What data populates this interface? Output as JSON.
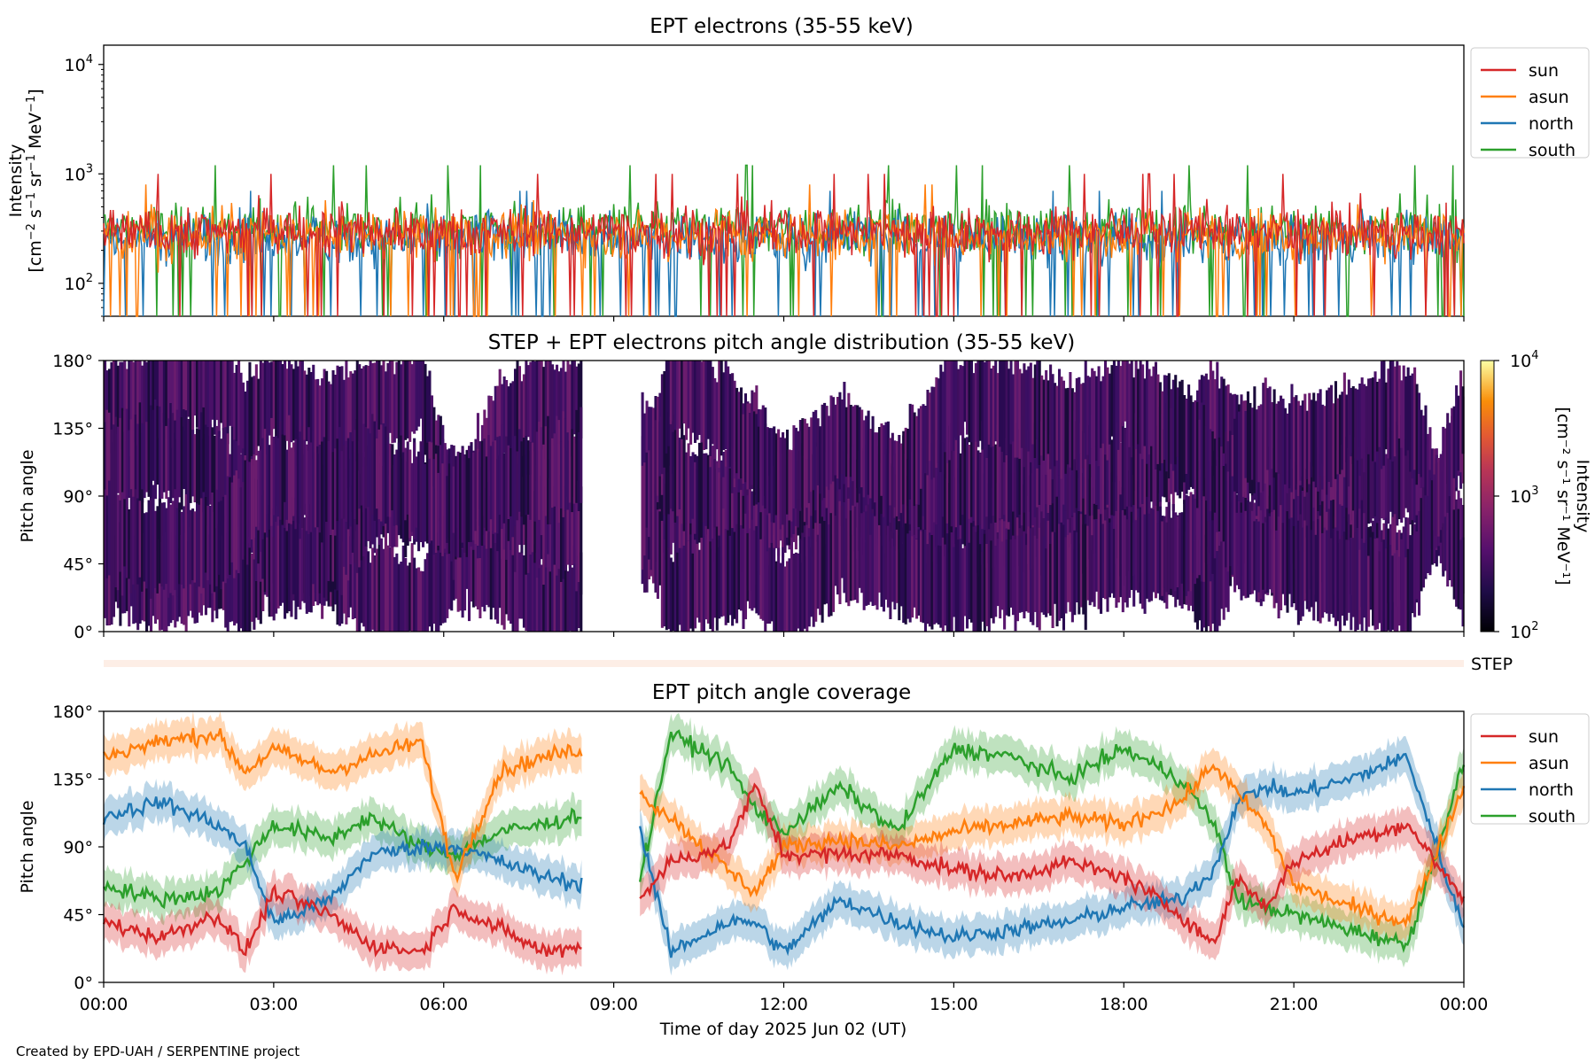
{
  "figure_credit": "Created by EPD-UAH / SERPENTINE project",
  "colors": {
    "sun": "#d62728",
    "asun": "#ff7f0e",
    "north": "#1f77b4",
    "south": "#2ca02c"
  },
  "chart_data": [
    {
      "type": "line",
      "title": "EPT electrons (35-55 keV)",
      "xlabel": "",
      "ylabel_line1": "Intensity",
      "ylabel_line2_parts": [
        "[cm",
        "−2",
        " s",
        "−1",
        " sr",
        "−1",
        " MeV",
        "−1",
        "]"
      ],
      "yscale": "log",
      "ylim": [
        50,
        15000
      ],
      "yticks": [
        {
          "value": 100,
          "base": "10",
          "exp": "2"
        },
        {
          "value": 1000,
          "base": "10",
          "exp": "3"
        },
        {
          "value": 10000,
          "base": "10",
          "exp": "4"
        }
      ],
      "xlim_hours": [
        0,
        24
      ],
      "x_ticks_hours": [
        0,
        3,
        6,
        9,
        12,
        15,
        18,
        21,
        24
      ],
      "legend_position": "outside-right-top",
      "series": [
        {
          "name": "sun",
          "typical_range": [
            60,
            1000
          ],
          "median": 300
        },
        {
          "name": "asun",
          "typical_range": [
            50,
            800
          ],
          "median": 280
        },
        {
          "name": "north",
          "typical_range": [
            50,
            700
          ],
          "median": 260
        },
        {
          "name": "south",
          "typical_range": [
            60,
            1200
          ],
          "median": 320
        }
      ]
    },
    {
      "type": "heatmap",
      "title": "STEP + EPT electrons pitch angle distribution (35-55 keV)",
      "ylabel": "Pitch angle",
      "ylim": [
        0,
        180
      ],
      "yticks": [
        "0°",
        "45°",
        "90°",
        "135°",
        "180°"
      ],
      "xlim_hours": [
        0,
        24
      ],
      "data_gap_hours": [
        8.45,
        9.5
      ],
      "colorbar": {
        "label_line1": "Intensity",
        "label_line2": "[cm⁻² s⁻¹ sr⁻¹ MeV⁻¹]",
        "scale": "log",
        "range": [
          100,
          10000
        ],
        "ticks": [
          {
            "value": 100,
            "base": "10",
            "exp": "2"
          },
          {
            "value": 1000,
            "base": "10",
            "exp": "3"
          },
          {
            "value": 10000,
            "base": "10",
            "exp": "4"
          }
        ],
        "colormap": "inferno",
        "typical_value": 250
      }
    },
    {
      "type": "bar",
      "name": "STEP",
      "label": "STEP",
      "description_value": "constant strip"
    },
    {
      "type": "line",
      "title": "EPT pitch angle coverage",
      "xlabel": "Time of day 2025 Jun 02 (UT)",
      "ylabel": "Pitch angle",
      "ylim": [
        0,
        180
      ],
      "yticks": [
        "0°",
        "45°",
        "90°",
        "135°",
        "180°"
      ],
      "xlim_hours": [
        0,
        24
      ],
      "x_tick_labels": [
        "00:00",
        "03:00",
        "06:00",
        "09:00",
        "12:00",
        "15:00",
        "18:00",
        "21:00",
        "00:00"
      ],
      "data_gap_hours": [
        8.45,
        9.45
      ],
      "band_halfwidth_deg": 12,
      "legend_position": "outside-right-top",
      "series": [
        {
          "name": "sun",
          "keyframes": [
            [
              0,
              40
            ],
            [
              1,
              30
            ],
            [
              2,
              45
            ],
            [
              2.5,
              20
            ],
            [
              3,
              60
            ],
            [
              4,
              45
            ],
            [
              4.7,
              25
            ],
            [
              5.6,
              20
            ],
            [
              6.2,
              50
            ],
            [
              7,
              35
            ],
            [
              7.8,
              20
            ],
            [
              8.45,
              25
            ],
            [
              9.45,
              55
            ],
            [
              10,
              80
            ],
            [
              11,
              90
            ],
            [
              11.5,
              130
            ],
            [
              12,
              85
            ],
            [
              13,
              85
            ],
            [
              14,
              85
            ],
            [
              15,
              75
            ],
            [
              16,
              70
            ],
            [
              17,
              80
            ],
            [
              18,
              70
            ],
            [
              19,
              45
            ],
            [
              19.6,
              25
            ],
            [
              20,
              70
            ],
            [
              20.5,
              50
            ],
            [
              21,
              80
            ],
            [
              22,
              95
            ],
            [
              23,
              105
            ],
            [
              24,
              55
            ]
          ]
        },
        {
          "name": "asun",
          "keyframes": [
            [
              0,
              150
            ],
            [
              1,
              160
            ],
            [
              2,
              165
            ],
            [
              2.5,
              140
            ],
            [
              3,
              155
            ],
            [
              4,
              140
            ],
            [
              4.7,
              150
            ],
            [
              5.6,
              160
            ],
            [
              6.2,
              70
            ],
            [
              7,
              140
            ],
            [
              7.8,
              150
            ],
            [
              8.45,
              155
            ],
            [
              9.45,
              125
            ],
            [
              10,
              110
            ],
            [
              11,
              75
            ],
            [
              11.5,
              60
            ],
            [
              12,
              90
            ],
            [
              13,
              95
            ],
            [
              14,
              90
            ],
            [
              15,
              100
            ],
            [
              16,
              105
            ],
            [
              17,
              110
            ],
            [
              18,
              105
            ],
            [
              19,
              120
            ],
            [
              19.6,
              145
            ],
            [
              20,
              125
            ],
            [
              20.5,
              105
            ],
            [
              21,
              65
            ],
            [
              22,
              50
            ],
            [
              23,
              40
            ],
            [
              24,
              130
            ]
          ]
        },
        {
          "name": "north",
          "keyframes": [
            [
              0,
              110
            ],
            [
              1,
              120
            ],
            [
              2,
              105
            ],
            [
              2.5,
              90
            ],
            [
              3,
              40
            ],
            [
              4,
              55
            ],
            [
              4.7,
              85
            ],
            [
              5.6,
              90
            ],
            [
              6.2,
              90
            ],
            [
              7,
              80
            ],
            [
              7.8,
              70
            ],
            [
              8.45,
              65
            ],
            [
              9.45,
              105
            ],
            [
              10,
              20
            ],
            [
              11,
              40
            ],
            [
              11.5,
              40
            ],
            [
              12,
              20
            ],
            [
              13,
              55
            ],
            [
              14,
              40
            ],
            [
              15,
              30
            ],
            [
              16,
              35
            ],
            [
              17,
              40
            ],
            [
              18,
              50
            ],
            [
              19,
              55
            ],
            [
              19.6,
              75
            ],
            [
              20,
              120
            ],
            [
              20.5,
              130
            ],
            [
              21,
              125
            ],
            [
              22,
              135
            ],
            [
              23,
              150
            ],
            [
              24,
              35
            ]
          ]
        },
        {
          "name": "south",
          "keyframes": [
            [
              0,
              65
            ],
            [
              1,
              55
            ],
            [
              2,
              60
            ],
            [
              2.5,
              80
            ],
            [
              3,
              105
            ],
            [
              4,
              95
            ],
            [
              4.7,
              110
            ],
            [
              5.6,
              90
            ],
            [
              6.2,
              85
            ],
            [
              7,
              100
            ],
            [
              7.8,
              105
            ],
            [
              8.45,
              112
            ],
            [
              9.45,
              65
            ],
            [
              10,
              165
            ],
            [
              11,
              145
            ],
            [
              11.5,
              115
            ],
            [
              12,
              100
            ],
            [
              13,
              130
            ],
            [
              14,
              100
            ],
            [
              15,
              155
            ],
            [
              16,
              150
            ],
            [
              17,
              135
            ],
            [
              18,
              155
            ],
            [
              19,
              135
            ],
            [
              19.6,
              105
            ],
            [
              20,
              55
            ],
            [
              20.5,
              50
            ],
            [
              21,
              45
            ],
            [
              22,
              35
            ],
            [
              23,
              25
            ],
            [
              24,
              145
            ]
          ]
        }
      ]
    }
  ]
}
